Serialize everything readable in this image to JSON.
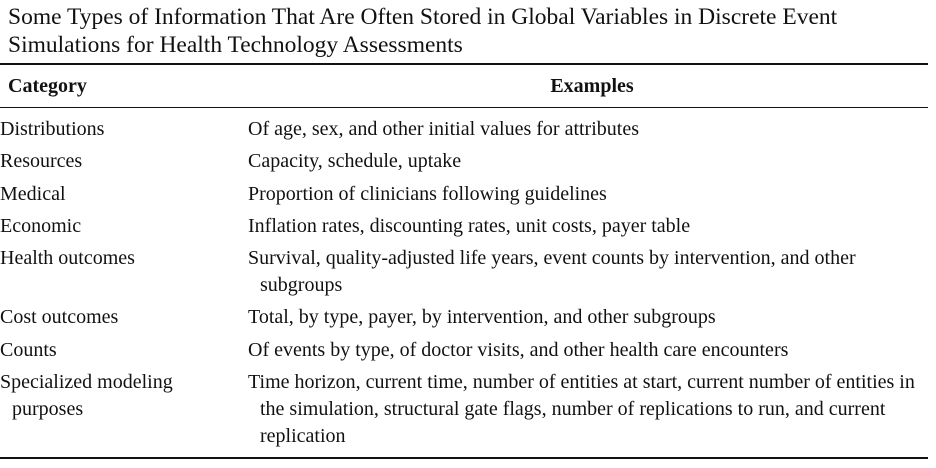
{
  "table": {
    "caption": "Some Types of Information That Are Often Stored in Global Variables in Discrete Event Simulations for Health Technology Assessments",
    "headers": {
      "category": "Category",
      "examples": "Examples"
    },
    "rows": [
      {
        "category": "Distributions",
        "examples": "Of age, sex, and other initial values for attributes"
      },
      {
        "category": "Resources",
        "examples": "Capacity, schedule, uptake"
      },
      {
        "category": "Medical",
        "examples": "Proportion of clinicians following guidelines"
      },
      {
        "category": "Economic",
        "examples": "Inflation rates, discounting rates, unit costs, payer table"
      },
      {
        "category": "Health outcomes",
        "examples": "Survival, quality-adjusted life years, event counts by intervention, and other subgroups"
      },
      {
        "category": "Cost outcomes",
        "examples": "Total, by type, payer, by intervention, and other subgroups"
      },
      {
        "category": "Counts",
        "examples": "Of events by type, of doctor visits, and other health care encounters"
      },
      {
        "category": "Specialized modeling purposes",
        "examples": "Time horizon, current time, number of entities at start, current number of entities in the simulation, structural gate flags, number of replications to run, and current replication"
      }
    ]
  }
}
